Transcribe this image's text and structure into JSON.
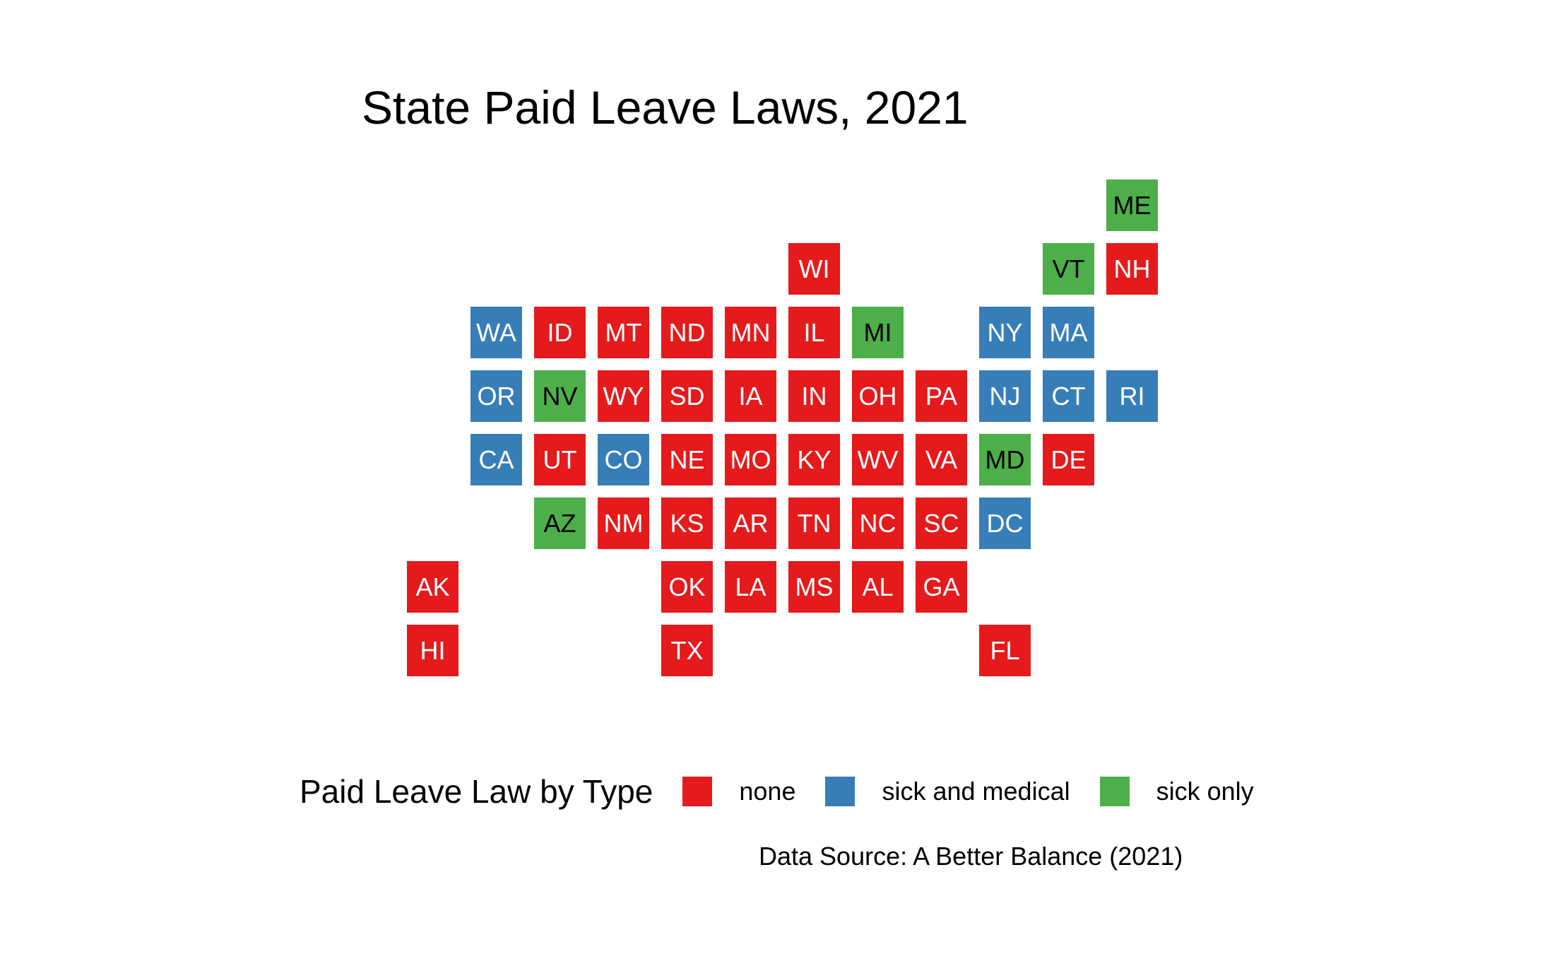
{
  "title": "State Paid Leave Laws, 2021",
  "caption": "Data Source: A Better Balance (2021)",
  "legend": {
    "title": "Paid Leave Law by Type",
    "items": [
      {
        "key": "none",
        "label": "none",
        "color": "#E41A1C"
      },
      {
        "key": "sick_and_medical",
        "label": "sick and medical",
        "color": "#377EB8"
      },
      {
        "key": "sick_only",
        "label": "sick only",
        "color": "#4DAF4A"
      }
    ]
  },
  "colors": {
    "none": "#E41A1C",
    "sick_and_medical": "#377EB8",
    "sick_only": "#4DAF4A",
    "text_light": "#ffffff",
    "text_dark": "#000000"
  },
  "states": [
    {
      "abbr": "ME",
      "col": 11,
      "row": 0,
      "type": "sick_only"
    },
    {
      "abbr": "WI",
      "col": 6,
      "row": 1,
      "type": "none"
    },
    {
      "abbr": "VT",
      "col": 10,
      "row": 1,
      "type": "sick_only"
    },
    {
      "abbr": "NH",
      "col": 11,
      "row": 1,
      "type": "none"
    },
    {
      "abbr": "WA",
      "col": 1,
      "row": 2,
      "type": "sick_and_medical"
    },
    {
      "abbr": "ID",
      "col": 2,
      "row": 2,
      "type": "none"
    },
    {
      "abbr": "MT",
      "col": 3,
      "row": 2,
      "type": "none"
    },
    {
      "abbr": "ND",
      "col": 4,
      "row": 2,
      "type": "none"
    },
    {
      "abbr": "MN",
      "col": 5,
      "row": 2,
      "type": "none"
    },
    {
      "abbr": "IL",
      "col": 6,
      "row": 2,
      "type": "none"
    },
    {
      "abbr": "MI",
      "col": 7,
      "row": 2,
      "type": "sick_only"
    },
    {
      "abbr": "NY",
      "col": 9,
      "row": 2,
      "type": "sick_and_medical"
    },
    {
      "abbr": "MA",
      "col": 10,
      "row": 2,
      "type": "sick_and_medical"
    },
    {
      "abbr": "OR",
      "col": 1,
      "row": 3,
      "type": "sick_and_medical"
    },
    {
      "abbr": "NV",
      "col": 2,
      "row": 3,
      "type": "sick_only"
    },
    {
      "abbr": "WY",
      "col": 3,
      "row": 3,
      "type": "none"
    },
    {
      "abbr": "SD",
      "col": 4,
      "row": 3,
      "type": "none"
    },
    {
      "abbr": "IA",
      "col": 5,
      "row": 3,
      "type": "none"
    },
    {
      "abbr": "IN",
      "col": 6,
      "row": 3,
      "type": "none"
    },
    {
      "abbr": "OH",
      "col": 7,
      "row": 3,
      "type": "none"
    },
    {
      "abbr": "PA",
      "col": 8,
      "row": 3,
      "type": "none"
    },
    {
      "abbr": "NJ",
      "col": 9,
      "row": 3,
      "type": "sick_and_medical"
    },
    {
      "abbr": "CT",
      "col": 10,
      "row": 3,
      "type": "sick_and_medical"
    },
    {
      "abbr": "RI",
      "col": 11,
      "row": 3,
      "type": "sick_and_medical"
    },
    {
      "abbr": "CA",
      "col": 1,
      "row": 4,
      "type": "sick_and_medical"
    },
    {
      "abbr": "UT",
      "col": 2,
      "row": 4,
      "type": "none"
    },
    {
      "abbr": "CO",
      "col": 3,
      "row": 4,
      "type": "sick_and_medical"
    },
    {
      "abbr": "NE",
      "col": 4,
      "row": 4,
      "type": "none"
    },
    {
      "abbr": "MO",
      "col": 5,
      "row": 4,
      "type": "none"
    },
    {
      "abbr": "KY",
      "col": 6,
      "row": 4,
      "type": "none"
    },
    {
      "abbr": "WV",
      "col": 7,
      "row": 4,
      "type": "none"
    },
    {
      "abbr": "VA",
      "col": 8,
      "row": 4,
      "type": "none"
    },
    {
      "abbr": "MD",
      "col": 9,
      "row": 4,
      "type": "sick_only"
    },
    {
      "abbr": "DE",
      "col": 10,
      "row": 4,
      "type": "none"
    },
    {
      "abbr": "AZ",
      "col": 2,
      "row": 5,
      "type": "sick_only"
    },
    {
      "abbr": "NM",
      "col": 3,
      "row": 5,
      "type": "none"
    },
    {
      "abbr": "KS",
      "col": 4,
      "row": 5,
      "type": "none"
    },
    {
      "abbr": "AR",
      "col": 5,
      "row": 5,
      "type": "none"
    },
    {
      "abbr": "TN",
      "col": 6,
      "row": 5,
      "type": "none"
    },
    {
      "abbr": "NC",
      "col": 7,
      "row": 5,
      "type": "none"
    },
    {
      "abbr": "SC",
      "col": 8,
      "row": 5,
      "type": "none"
    },
    {
      "abbr": "DC",
      "col": 9,
      "row": 5,
      "type": "sick_and_medical"
    },
    {
      "abbr": "AK",
      "col": 0,
      "row": 6,
      "type": "none"
    },
    {
      "abbr": "OK",
      "col": 4,
      "row": 6,
      "type": "none"
    },
    {
      "abbr": "LA",
      "col": 5,
      "row": 6,
      "type": "none"
    },
    {
      "abbr": "MS",
      "col": 6,
      "row": 6,
      "type": "none"
    },
    {
      "abbr": "AL",
      "col": 7,
      "row": 6,
      "type": "none"
    },
    {
      "abbr": "GA",
      "col": 8,
      "row": 6,
      "type": "none"
    },
    {
      "abbr": "HI",
      "col": 0,
      "row": 7,
      "type": "none"
    },
    {
      "abbr": "TX",
      "col": 4,
      "row": 7,
      "type": "none"
    },
    {
      "abbr": "FL",
      "col": 9,
      "row": 7,
      "type": "none"
    }
  ]
}
